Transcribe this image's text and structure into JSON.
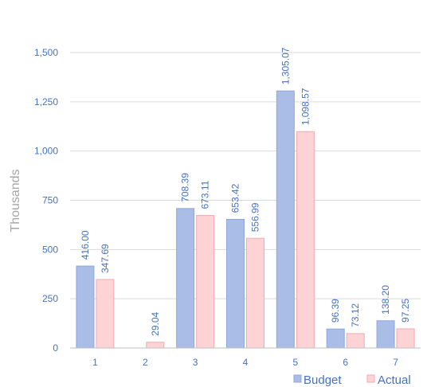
{
  "chart_data": {
    "type": "bar",
    "ylabel": "Thousands",
    "ylim": [
      0,
      1500
    ],
    "yticks": [
      "0",
      "250",
      "500",
      "750",
      "1,000",
      "1,250",
      "1,500"
    ],
    "ytick_values": [
      0,
      250,
      500,
      750,
      1000,
      1250,
      1500
    ],
    "categories": [
      "1",
      "2",
      "3",
      "4",
      "5",
      "6",
      "7"
    ],
    "series": [
      {
        "name": "Budget",
        "color": "#a9bde6",
        "stroke": "#8ea9db",
        "values": [
          416.0,
          null,
          708.39,
          653.42,
          1305.07,
          96.39,
          138.2
        ],
        "labels": [
          "416.00",
          "",
          "708.39",
          "653.42",
          "1,305.07",
          "96.39",
          "138.20"
        ]
      },
      {
        "name": "Actual",
        "color": "#fdd3d6",
        "stroke": "#f2aab0",
        "values": [
          347.69,
          29.04,
          673.11,
          556.99,
          1098.57,
          73.12,
          97.25
        ],
        "labels": [
          "347.69",
          "29.04",
          "673.11",
          "556.99",
          "1,098.57",
          "73.12",
          "97.25"
        ]
      }
    ],
    "grid": true,
    "legend_position": "bottom-right"
  }
}
